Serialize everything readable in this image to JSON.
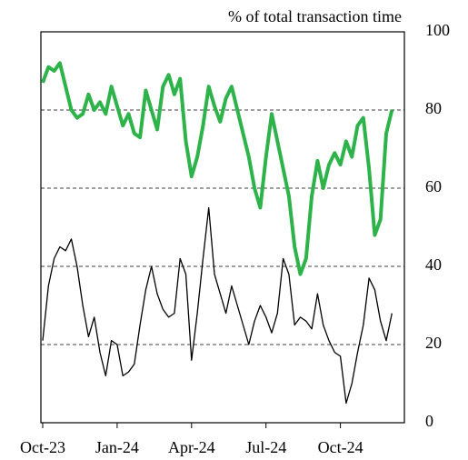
{
  "chart_data": {
    "type": "line",
    "title": "% of total transaction time",
    "categories": [
      "Oct-23",
      null,
      null,
      null,
      null,
      null,
      null,
      null,
      null,
      null,
      null,
      null,
      null,
      "Jan-24",
      null,
      null,
      null,
      null,
      null,
      null,
      null,
      null,
      null,
      null,
      null,
      null,
      "Apr-24",
      null,
      null,
      null,
      null,
      null,
      null,
      null,
      null,
      null,
      null,
      null,
      null,
      "Jul-24",
      null,
      null,
      null,
      null,
      null,
      null,
      null,
      null,
      null,
      null,
      null,
      null,
      "Oct-24",
      null,
      null,
      null,
      null,
      null,
      null,
      null,
      null,
      null
    ],
    "series": [
      {
        "color": "#2db34a",
        "values": [
          87,
          91,
          90,
          92,
          86,
          80,
          78,
          79,
          84,
          80,
          82,
          79,
          86,
          81,
          76,
          79,
          74,
          73,
          85,
          80,
          75,
          86,
          89,
          84,
          88,
          72,
          63,
          68,
          76,
          86,
          81,
          77,
          83,
          86,
          80,
          74,
          68,
          60,
          55,
          68,
          79,
          72,
          65,
          58,
          45,
          38,
          42,
          58,
          67,
          60,
          66,
          69,
          66,
          72,
          68,
          76,
          78,
          65,
          48,
          52,
          74,
          80
        ]
      },
      {
        "color": "#000000",
        "values": [
          21,
          35,
          42,
          45,
          44,
          47,
          40,
          30,
          22,
          27,
          18,
          12,
          21,
          20,
          12,
          13,
          15,
          25,
          34,
          40,
          33,
          29,
          27,
          28,
          42,
          38,
          16,
          28,
          42,
          55,
          38,
          33,
          28,
          35,
          30,
          25,
          20,
          26,
          30,
          27,
          23,
          28,
          42,
          38,
          25,
          27,
          26,
          24,
          33,
          25,
          21,
          18,
          17,
          5,
          10,
          18,
          25,
          37,
          34,
          26,
          21,
          28
        ]
      }
    ],
    "ylim": [
      0,
      100
    ],
    "yticks": [
      0,
      20,
      40,
      60,
      80,
      100
    ],
    "grid": true
  }
}
